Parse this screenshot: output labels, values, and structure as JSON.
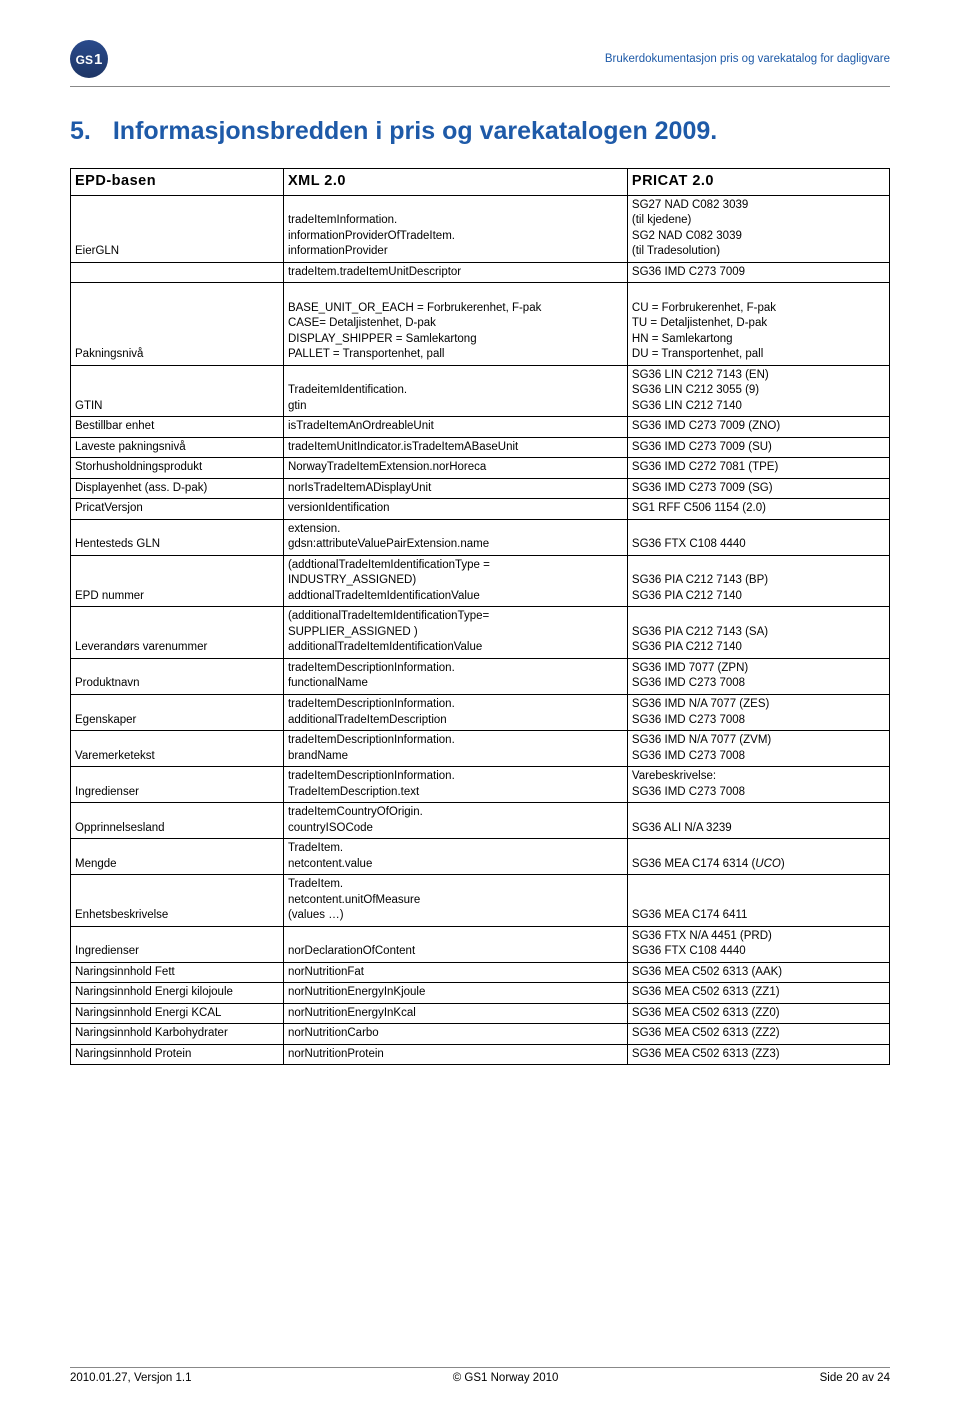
{
  "header": {
    "logo_text_gs": "GS",
    "logo_text_1": "1",
    "right_text": "Brukerdokumentasjon pris og varekatalog for dagligvare"
  },
  "section": {
    "number": "5.",
    "title": "Informasjonsbredden i pris og varekatalogen 2009."
  },
  "table": {
    "headers": [
      "EPD-basen",
      "XML 2.0",
      "PRICAT 2.0"
    ],
    "rows": [
      {
        "c1": "EierGLN",
        "c2": "tradeItemInformation.\ninformationProviderOfTradeItem.\ninformationProvider",
        "c3": "SG27 NAD C082 3039\n(til kjedene)\nSG2 NAD C082 3039\n(til Tradesolution)"
      },
      {
        "c1": "",
        "c2": "tradeItem.tradeItemUnitDescriptor",
        "c3": "SG36 IMD C273 7009"
      },
      {
        "c1": "Pakningsnivå",
        "c2": "\nBASE_UNIT_OR_EACH = Forbrukerenhet, F-pak\nCASE= Detaljistenhet, D-pak\nDISPLAY_SHIPPER = Samlekartong\nPALLET = Transportenhet, pall",
        "c3": "\nCU = Forbrukerenhet, F-pak\nTU = Detaljistenhet, D-pak\nHN = Samlekartong\nDU = Transportenhet, pall"
      },
      {
        "c1": "GTIN",
        "c2": "TradeitemIdentification.\ngtin",
        "c3": "SG36 LIN C212 7143 (EN)\nSG36 LIN C212 3055 (9)\nSG36 LIN C212 7140"
      },
      {
        "c1": "Bestillbar enhet",
        "c2": "isTradeItemAnOrdreableUnit",
        "c3": "SG36 IMD C273 7009 (ZNO)"
      },
      {
        "c1": "Laveste pakningsnivå",
        "c2": "tradeItemUnitIndicator.isTradeItemABaseUnit",
        "c3": "SG36 IMD C273 7009 (SU)"
      },
      {
        "c1": "Storhusholdningsprodukt",
        "c2": "NorwayTradeItemExtension.norHoreca",
        "c3": "SG36 IMD C272 7081 (TPE)"
      },
      {
        "c1": "Displayenhet (ass. D-pak)",
        "c2": "norIsTradeItemADisplayUnit",
        "c3": "SG36 IMD C273 7009 (SG)"
      },
      {
        "c1": "PricatVersjon",
        "c2": "versionIdentification",
        "c3": "SG1 RFF C506 1154 (2.0)"
      },
      {
        "c1": "Hentesteds GLN",
        "c2": "extension.\ngdsn:attributeValuePairExtension.name",
        "c3": "SG36 FTX C108 4440"
      },
      {
        "c1": "EPD nummer",
        "c2": "(addtionalTradeItemIdentificationType =\nINDUSTRY_ASSIGNED)\naddtionalTradeItemIdentificationValue",
        "c3": "SG36 PIA C212 7143 (BP)\nSG36 PIA C212 7140"
      },
      {
        "c1": "Leverandørs varenummer",
        "c2": "(additionalTradeItemIdentificationType=\nSUPPLIER_ASSIGNED )\nadditionalTradeItemIdentificationValue",
        "c3": "SG36 PIA C212 7143 (SA)\nSG36 PIA C212 7140"
      },
      {
        "c1": "Produktnavn",
        "c2": "tradeItemDescriptionInformation.\nfunctionalName",
        "c3": "SG36 IMD 7077 (ZPN)\nSG36 IMD C273 7008"
      },
      {
        "c1": "Egenskaper",
        "c2": "tradeItemDescriptionInformation.\nadditionalTradeItemDescription",
        "c3": "SG36 IMD N/A 7077 (ZES)\nSG36 IMD C273 7008"
      },
      {
        "c1": "Varemerketekst",
        "c2": "tradeItemDescriptionInformation.\nbrandName",
        "c3": "SG36 IMD N/A 7077 (ZVM)\nSG36 IMD C273 7008"
      },
      {
        "c1": " Ingredienser",
        "c2": "tradeItemDescriptionInformation.\nTradeItemDescription.text",
        "c3": "Varebeskrivelse:\nSG36 IMD C273 7008"
      },
      {
        "c1": "Opprinnelsesland",
        "c2": "tradeItemCountryOfOrigin.\ncountryISOCode",
        "c3": "SG36 ALI N/A 3239"
      },
      {
        "c1": "Mengde",
        "c2": "TradeItem.\nnetcontent.value",
        "c3": "SG36 MEA C174 6314 (UCO)",
        "c3_italic": true
      },
      {
        "c1": "Enhetsbeskrivelse",
        "c2": "TradeItem.\nnetcontent.unitOfMeasure\n(values …)",
        "c3": "SG36 MEA C174 6411"
      },
      {
        "c1": "Ingredienser",
        "c2": "norDeclarationOfContent",
        "c3": "SG36 FTX N/A 4451 (PRD)\nSG36 FTX C108 4440"
      },
      {
        "c1": "Naringsinnhold Fett",
        "c2": "norNutritionFat",
        "c3": "SG36 MEA C502 6313 (AAK)"
      },
      {
        "c1": "Naringsinnhold Energi kilojoule",
        "c2": "norNutritionEnergyInKjoule",
        "c3": "SG36 MEA C502 6313 (ZZ1)"
      },
      {
        "c1": "Naringsinnhold Energi KCAL",
        "c2": "norNutritionEnergyInKcal",
        "c3": "SG36 MEA C502 6313 (ZZ0)"
      },
      {
        "c1": "Naringsinnhold Karbohydrater",
        "c2": "norNutritionCarbo",
        "c3": "SG36 MEA C502 6313 (ZZ2)"
      },
      {
        "c1": "Naringsinnhold Protein",
        "c2": "norNutritionProtein",
        "c3": "SG36 MEA C502 6313 (ZZ3)"
      }
    ]
  },
  "footer": {
    "left": "2010.01.27, Versjon 1.1",
    "center": "© GS1 Norway 2010",
    "right": "Side 20 av 24"
  }
}
